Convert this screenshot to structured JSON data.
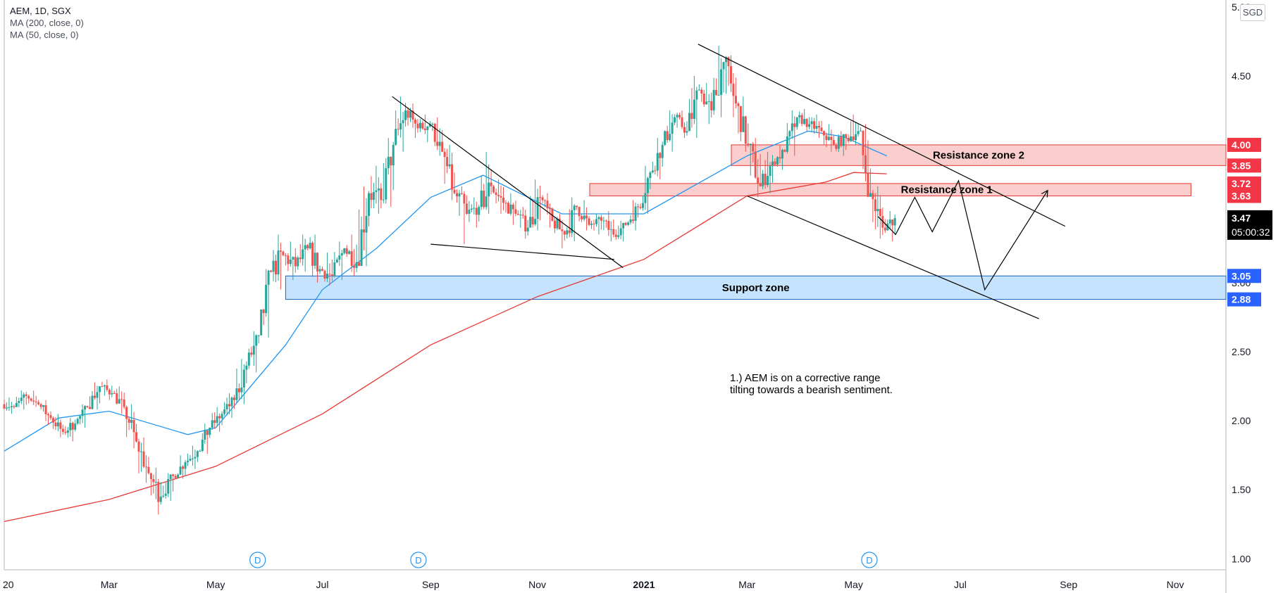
{
  "header": {
    "symbol_line": "AEM, 1D, SGX",
    "ma200_label": "MA (200, close, 0)",
    "ma50_label": "MA (50, close, 0)",
    "currency": "SGD"
  },
  "colors": {
    "up_candle": "#26a69a",
    "down_candle": "#ef5350",
    "ma50": "#2196f3",
    "ma200": "#e53935",
    "resistance_fill": "#f8c6c4",
    "support_fill": "#bbdefb",
    "price_badge_red": "#f23645",
    "price_badge_blue": "#2962ff",
    "price_badge_black": "#000000"
  },
  "chart_data": {
    "type": "candlestick",
    "y_ticks": [
      "5.00",
      "4.50",
      "4.00",
      "3.50",
      "3.00",
      "2.50",
      "2.00",
      "1.50",
      "1.00"
    ],
    "ylim": [
      0.92,
      5.05
    ],
    "x_ticks": [
      "20",
      "Mar",
      "May",
      "Jul",
      "Sep",
      "Nov",
      "2021",
      "Mar",
      "May",
      "Jul",
      "Sep",
      "Nov"
    ],
    "x_tick_dates": [
      "2020-01-01",
      "2020-03-01",
      "2020-05-01",
      "2020-07-01",
      "2020-09-01",
      "2020-11-01",
      "2021-01-01",
      "2021-03-01",
      "2021-05-01",
      "2021-07-01",
      "2021-09-01",
      "2021-11-01"
    ],
    "xlim": [
      "2020-01-01",
      "2021-11-30"
    ],
    "current_price": "3.47",
    "countdown": "05:00:32",
    "price_labels": [
      {
        "value": "4.00",
        "level": 4.0,
        "color": "red"
      },
      {
        "value": "3.85",
        "level": 3.85,
        "color": "red"
      },
      {
        "value": "3.72",
        "level": 3.72,
        "color": "red"
      },
      {
        "value": "3.63",
        "level": 3.63,
        "color": "red"
      },
      {
        "value": "3.05",
        "level": 3.05,
        "color": "blue"
      },
      {
        "value": "2.88",
        "level": 2.88,
        "color": "blue"
      }
    ],
    "zones": [
      {
        "label": "Resistance zone 2",
        "kind": "resistance",
        "low": 3.85,
        "high": 4.0,
        "start": "2021-02-20",
        "end": "2021-11-30"
      },
      {
        "label": "Resistance zone 1",
        "kind": "resistance",
        "low": 3.63,
        "high": 3.72,
        "start": "2020-12-01",
        "end": "2021-11-10"
      },
      {
        "label": "Support zone",
        "kind": "support",
        "low": 2.88,
        "high": 3.05,
        "start": "2020-06-10",
        "end": "2021-11-30"
      }
    ],
    "annotation": [
      "1.) AEM is on a corrective range",
      "tilting towards a bearish sentiment."
    ],
    "dividend_markers": [
      "D",
      "D",
      "D"
    ],
    "dividend_dates": [
      "2020-05-25",
      "2020-08-25",
      "2021-05-10"
    ],
    "ma200_points": [
      {
        "x": "2020-01-01",
        "y": 1.27
      },
      {
        "x": "2020-03-01",
        "y": 1.43
      },
      {
        "x": "2020-05-01",
        "y": 1.67
      },
      {
        "x": "2020-07-01",
        "y": 2.05
      },
      {
        "x": "2020-09-01",
        "y": 2.55
      },
      {
        "x": "2020-11-01",
        "y": 2.9
      },
      {
        "x": "2021-01-01",
        "y": 3.17
      },
      {
        "x": "2021-03-01",
        "y": 3.63
      },
      {
        "x": "2021-04-15",
        "y": 3.73
      },
      {
        "x": "2021-05-01",
        "y": 3.8
      },
      {
        "x": "2021-05-20",
        "y": 3.79
      }
    ],
    "ma50_points": [
      {
        "x": "2020-01-01",
        "y": 1.78
      },
      {
        "x": "2020-02-01",
        "y": 2.02
      },
      {
        "x": "2020-03-01",
        "y": 2.07
      },
      {
        "x": "2020-04-15",
        "y": 1.9
      },
      {
        "x": "2020-05-01",
        "y": 1.95
      },
      {
        "x": "2020-06-10",
        "y": 2.55
      },
      {
        "x": "2020-07-01",
        "y": 2.95
      },
      {
        "x": "2020-08-01",
        "y": 3.25
      },
      {
        "x": "2020-09-01",
        "y": 3.62
      },
      {
        "x": "2020-10-01",
        "y": 3.78
      },
      {
        "x": "2020-11-15",
        "y": 3.5
      },
      {
        "x": "2021-01-01",
        "y": 3.5
      },
      {
        "x": "2021-03-01",
        "y": 3.92
      },
      {
        "x": "2021-04-05",
        "y": 4.1
      },
      {
        "x": "2021-04-25",
        "y": 4.06
      },
      {
        "x": "2021-05-20",
        "y": 3.92
      }
    ],
    "trendlines": [
      {
        "name": "triangle-upper",
        "points": [
          {
            "x": "2020-08-10",
            "y": 4.35
          },
          {
            "x": "2020-12-20",
            "y": 3.11
          }
        ]
      },
      {
        "name": "triangle-lower",
        "points": [
          {
            "x": "2020-09-01",
            "y": 3.28
          },
          {
            "x": "2020-12-15",
            "y": 3.17
          }
        ]
      },
      {
        "name": "channel-upper",
        "points": [
          {
            "x": "2021-02-01",
            "y": 4.73
          },
          {
            "x": "2021-08-30",
            "y": 3.41
          }
        ]
      },
      {
        "name": "channel-lower",
        "points": [
          {
            "x": "2021-03-01",
            "y": 3.63
          },
          {
            "x": "2021-08-15",
            "y": 2.74
          }
        ]
      }
    ],
    "projection_path": [
      {
        "x": "2021-05-15",
        "y": 3.48
      },
      {
        "x": "2021-05-25",
        "y": 3.35
      },
      {
        "x": "2021-06-05",
        "y": 3.62
      },
      {
        "x": "2021-06-15",
        "y": 3.37
      },
      {
        "x": "2021-06-30",
        "y": 3.74
      },
      {
        "x": "2021-07-15",
        "y": 2.95
      },
      {
        "x": "2021-08-20",
        "y": 3.67
      }
    ],
    "ohlc_weekly": [
      [
        "2020-01-01",
        2.12,
        2.17,
        2.05,
        2.1
      ],
      [
        "2020-01-08",
        2.1,
        2.22,
        2.08,
        2.18
      ],
      [
        "2020-01-15",
        2.18,
        2.22,
        2.1,
        2.12
      ],
      [
        "2020-01-22",
        2.12,
        2.15,
        1.97,
        2.02
      ],
      [
        "2020-01-29",
        2.02,
        2.05,
        1.88,
        1.92
      ],
      [
        "2020-02-05",
        1.92,
        2.02,
        1.85,
        1.98
      ],
      [
        "2020-02-12",
        1.98,
        2.12,
        1.95,
        2.1
      ],
      [
        "2020-02-19",
        2.1,
        2.28,
        2.08,
        2.25
      ],
      [
        "2020-02-26",
        2.25,
        2.3,
        2.15,
        2.2
      ],
      [
        "2020-03-04",
        2.2,
        2.25,
        2.05,
        2.1
      ],
      [
        "2020-03-11",
        2.1,
        2.12,
        1.8,
        1.85
      ],
      [
        "2020-03-18",
        1.85,
        1.88,
        1.55,
        1.62
      ],
      [
        "2020-03-25",
        1.62,
        1.66,
        1.32,
        1.45
      ],
      [
        "2020-04-01",
        1.45,
        1.62,
        1.42,
        1.6
      ],
      [
        "2020-04-08",
        1.6,
        1.75,
        1.58,
        1.7
      ],
      [
        "2020-04-15",
        1.7,
        1.82,
        1.65,
        1.78
      ],
      [
        "2020-04-22",
        1.78,
        1.98,
        1.76,
        1.95
      ],
      [
        "2020-04-29",
        1.95,
        2.1,
        1.92,
        2.05
      ],
      [
        "2020-05-06",
        2.05,
        2.2,
        2.02,
        2.15
      ],
      [
        "2020-05-13",
        2.15,
        2.45,
        2.12,
        2.4
      ],
      [
        "2020-05-20",
        2.4,
        2.65,
        2.35,
        2.62
      ],
      [
        "2020-05-27",
        2.62,
        3.1,
        2.6,
        3.08
      ],
      [
        "2020-06-03",
        3.08,
        3.35,
        2.95,
        3.2
      ],
      [
        "2020-06-10",
        3.2,
        3.3,
        3.02,
        3.12
      ],
      [
        "2020-06-17",
        3.12,
        3.35,
        3.08,
        3.25
      ],
      [
        "2020-06-24",
        3.25,
        3.35,
        3.0,
        3.1
      ],
      [
        "2020-07-01",
        3.1,
        3.22,
        2.98,
        3.05
      ],
      [
        "2020-07-08",
        3.05,
        3.3,
        3.02,
        3.25
      ],
      [
        "2020-07-15",
        3.25,
        3.35,
        3.05,
        3.15
      ],
      [
        "2020-07-22",
        3.15,
        3.7,
        3.12,
        3.65
      ],
      [
        "2020-07-29",
        3.65,
        3.85,
        3.5,
        3.6
      ],
      [
        "2020-08-05",
        3.6,
        4.05,
        3.55,
        4.0
      ],
      [
        "2020-08-12",
        4.0,
        4.35,
        3.95,
        4.25
      ],
      [
        "2020-08-19",
        4.25,
        4.3,
        4.05,
        4.12
      ],
      [
        "2020-08-26",
        4.12,
        4.22,
        4.02,
        4.15
      ],
      [
        "2020-09-02",
        4.15,
        4.2,
        3.92,
        3.95
      ],
      [
        "2020-09-09",
        3.95,
        4.0,
        3.6,
        3.65
      ],
      [
        "2020-09-16",
        3.65,
        3.7,
        3.28,
        3.5
      ],
      [
        "2020-09-23",
        3.5,
        3.62,
        3.4,
        3.55
      ],
      [
        "2020-09-30",
        3.55,
        3.95,
        3.5,
        3.7
      ],
      [
        "2020-10-07",
        3.7,
        3.75,
        3.5,
        3.58
      ],
      [
        "2020-10-14",
        3.58,
        3.65,
        3.42,
        3.5
      ],
      [
        "2020-10-21",
        3.5,
        3.55,
        3.32,
        3.4
      ],
      [
        "2020-10-28",
        3.4,
        3.75,
        3.38,
        3.62
      ],
      [
        "2020-11-04",
        3.62,
        3.65,
        3.4,
        3.45
      ],
      [
        "2020-11-11",
        3.45,
        3.5,
        3.25,
        3.35
      ],
      [
        "2020-11-18",
        3.35,
        3.62,
        3.3,
        3.55
      ],
      [
        "2020-11-25",
        3.55,
        3.6,
        3.38,
        3.42
      ],
      [
        "2020-12-02",
        3.42,
        3.5,
        3.35,
        3.45
      ],
      [
        "2020-12-09",
        3.45,
        3.52,
        3.3,
        3.35
      ],
      [
        "2020-12-16",
        3.35,
        3.45,
        3.3,
        3.42
      ],
      [
        "2020-12-23",
        3.42,
        3.6,
        3.38,
        3.55
      ],
      [
        "2020-12-30",
        3.55,
        3.85,
        3.5,
        3.8
      ],
      [
        "2021-01-06",
        3.8,
        4.05,
        3.75,
        4.0
      ],
      [
        "2021-01-13",
        4.0,
        4.25,
        3.95,
        4.2
      ],
      [
        "2021-01-20",
        4.2,
        4.25,
        4.05,
        4.1
      ],
      [
        "2021-01-27",
        4.1,
        4.5,
        4.05,
        4.4
      ],
      [
        "2021-02-03",
        4.4,
        4.45,
        4.15,
        4.25
      ],
      [
        "2021-02-10",
        4.25,
        4.72,
        4.2,
        4.6
      ],
      [
        "2021-02-17",
        4.6,
        4.65,
        4.2,
        4.3
      ],
      [
        "2021-02-24",
        4.3,
        4.35,
        3.95,
        4.0
      ],
      [
        "2021-03-03",
        4.0,
        4.05,
        3.62,
        3.7
      ],
      [
        "2021-03-10",
        3.7,
        3.95,
        3.65,
        3.88
      ],
      [
        "2021-03-17",
        3.88,
        4.0,
        3.82,
        3.95
      ],
      [
        "2021-03-24",
        3.95,
        4.25,
        3.92,
        4.2
      ],
      [
        "2021-03-31",
        4.2,
        4.26,
        4.1,
        4.15
      ],
      [
        "2021-04-07",
        4.15,
        4.22,
        4.05,
        4.1
      ],
      [
        "2021-04-14",
        4.1,
        4.15,
        3.95,
        4.0
      ],
      [
        "2021-04-21",
        4.0,
        4.1,
        3.92,
        4.05
      ],
      [
        "2021-04-28",
        4.05,
        4.22,
        4.0,
        4.1
      ],
      [
        "2021-05-05",
        4.1,
        4.15,
        3.62,
        3.65
      ],
      [
        "2021-05-12",
        3.65,
        3.7,
        3.32,
        3.4
      ],
      [
        "2021-05-19",
        3.4,
        3.52,
        3.3,
        3.47
      ]
    ]
  }
}
